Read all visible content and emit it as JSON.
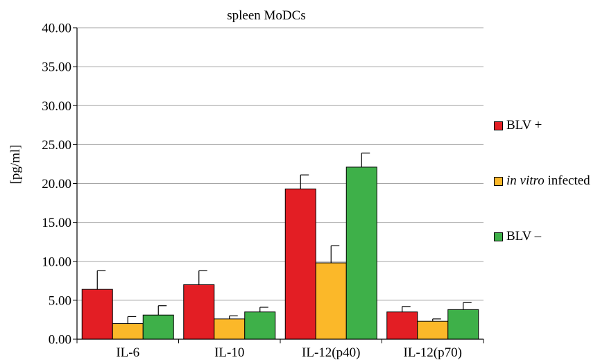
{
  "chart_data": {
    "type": "bar",
    "title": "spleen MoDCs",
    "ylabel": "[pg/ml]",
    "xlabel": "",
    "ylim": [
      0,
      40
    ],
    "yticks": [
      "0.00",
      "5.00",
      "10.00",
      "15.00",
      "20.00",
      "25.00",
      "30.00",
      "35.00",
      "40.00"
    ],
    "grid": true,
    "legend_position": "right",
    "categories": [
      "IL-6",
      "IL-10",
      "IL-12(p40)",
      "IL-12(p70)"
    ],
    "series": [
      {
        "name": "BLV +",
        "color": "#e31e24",
        "values": [
          6.4,
          7.0,
          19.3,
          3.5
        ],
        "errors": [
          2.4,
          1.8,
          1.8,
          0.7
        ]
      },
      {
        "name_italic": "in vitro",
        "name_rest": " infected",
        "color": "#fbb829",
        "values": [
          2.0,
          2.6,
          9.8,
          2.3
        ],
        "errors": [
          0.9,
          0.4,
          2.2,
          0.3
        ]
      },
      {
        "name": "BLV –",
        "color": "#3eb049",
        "values": [
          3.1,
          3.5,
          22.1,
          3.8
        ],
        "errors": [
          1.2,
          0.6,
          1.8,
          0.9
        ]
      }
    ]
  }
}
